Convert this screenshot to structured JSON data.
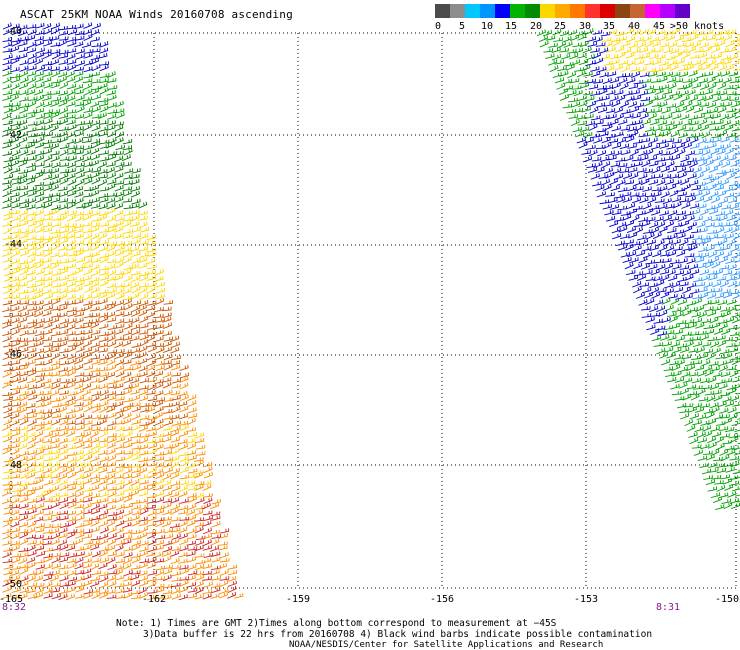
{
  "title": "ASCAT 25KM NOAA Winds 20160708 ascending",
  "legend": {
    "colors": [
      "#4b4b4b",
      "#8c8c8c",
      "#00c8ff",
      "#0096ff",
      "#0000ff",
      "#00b400",
      "#008c00",
      "#ffd700",
      "#ffaa00",
      "#ff7800",
      "#ff3232",
      "#dc0000",
      "#8b4513",
      "#c86432",
      "#ff00ff",
      "#b400ff",
      "#6400c8"
    ],
    "tick_labels": [
      "0",
      "5",
      "10",
      "15",
      "20",
      "25",
      "30",
      "35",
      "40",
      "45",
      ">50 knots"
    ]
  },
  "lat_labels": [
    "-40",
    "-42",
    "-44",
    "-46",
    "-48",
    "-50"
  ],
  "lon_labels": [
    "-165",
    "-162",
    "-159",
    "-156",
    "-153",
    "-150"
  ],
  "pass_labels": [
    "8:32",
    "8:31"
  ],
  "notes": [
    "Note: 1) Times are GMT 2)Times along bottom correspond to measurement at −45S",
    "3)Data buffer is 22 hrs from 20160708 4) Black wind barbs indicate possible contamination",
    "NOAA/NESDIS/Center for Satellite Applications and Research"
  ],
  "swath_colors": {
    "blue": "#0000cc",
    "green": "#00a000",
    "darkgreen": "#007800",
    "yellow": "#ffd700",
    "orange": "#ff8c00",
    "darkorange": "#cc5500",
    "red": "#cc2222",
    "lightblue": "#3399ff"
  }
}
